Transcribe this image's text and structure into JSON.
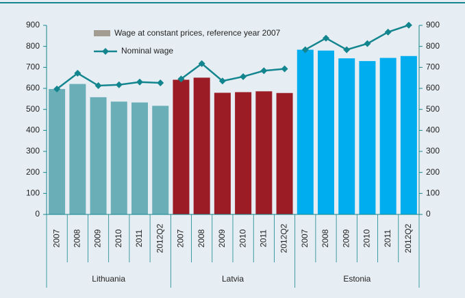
{
  "chart_data": {
    "type": "bar",
    "categories": [
      "2007",
      "2008",
      "2009",
      "2010",
      "2011",
      "2012Q2",
      "2007",
      "2008",
      "2009",
      "2010",
      "2011",
      "2012Q2",
      "2007",
      "2008",
      "2009",
      "2010",
      "2011",
      "2012Q2"
    ],
    "groups": [
      {
        "label": "Lithuania",
        "color": "#6aafb8"
      },
      {
        "label": "Latvia",
        "color": "#9b1c24"
      },
      {
        "label": "Estonia",
        "color": "#00aeef"
      }
    ],
    "series": [
      {
        "name": "Wage at constant prices, reference year 2007",
        "type": "bar",
        "color": "#a39c92",
        "values": [
          597,
          621,
          558,
          537,
          533,
          517,
          641,
          651,
          579,
          582,
          586,
          578,
          784,
          780,
          743,
          730,
          745,
          754
        ]
      },
      {
        "name": "Nominal wage",
        "type": "line",
        "axis": "y2",
        "color": "#12858e",
        "values": [
          597,
          672,
          613,
          617,
          630,
          626,
          645,
          718,
          635,
          656,
          684,
          693,
          784,
          839,
          784,
          813,
          868,
          901
        ]
      }
    ],
    "ylim": [
      0,
      900
    ],
    "yticks": [
      0,
      100,
      200,
      300,
      400,
      500,
      600,
      700,
      800,
      900
    ],
    "y2lim": [
      0,
      900
    ],
    "y2ticks": [
      0,
      100,
      200,
      300,
      400,
      500,
      600,
      700,
      800,
      900
    ],
    "grid": false
  }
}
